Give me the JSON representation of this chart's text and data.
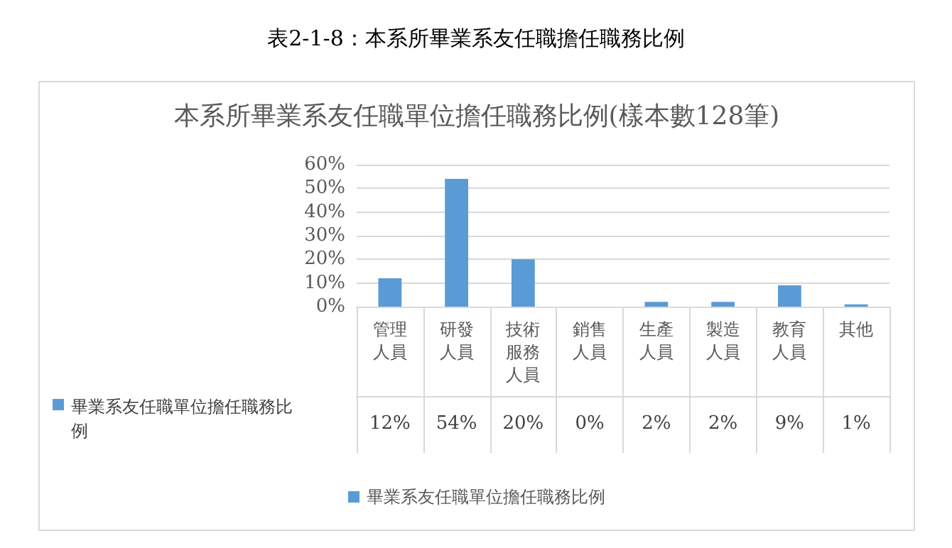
{
  "chart_data": {
    "type": "bar",
    "title": "表2-1-8：本系所畢業系友任職擔任職務比例",
    "subtitle": "本系所畢業系友任職單位擔任職務比例(樣本數128筆)",
    "categories": [
      "管理人員",
      "研發人員",
      "技術服務人員",
      "銷售人員",
      "生產人員",
      "製造人員",
      "教育人員",
      "其他"
    ],
    "series": [
      {
        "name": "畢業系友任職單位擔任職務比例",
        "color": "#5b9bd5",
        "values": [
          12,
          54,
          20,
          0,
          2,
          2,
          9,
          1
        ],
        "value_labels": [
          "12%",
          "54%",
          "20%",
          "0%",
          "2%",
          "2%",
          "9%",
          "1%"
        ]
      }
    ],
    "ylim": [
      0,
      60
    ],
    "yticks": [
      {
        "value": 0,
        "label": "0%"
      },
      {
        "value": 10,
        "label": "10%"
      },
      {
        "value": 20,
        "label": "20%"
      },
      {
        "value": 30,
        "label": "30%"
      },
      {
        "value": 40,
        "label": "40%"
      },
      {
        "value": 50,
        "label": "50%"
      },
      {
        "value": 60,
        "label": "60%"
      }
    ],
    "annotations": [
      "畢業系友任職單位擔任職務比例"
    ],
    "grid": "y",
    "legend": "bottom"
  }
}
